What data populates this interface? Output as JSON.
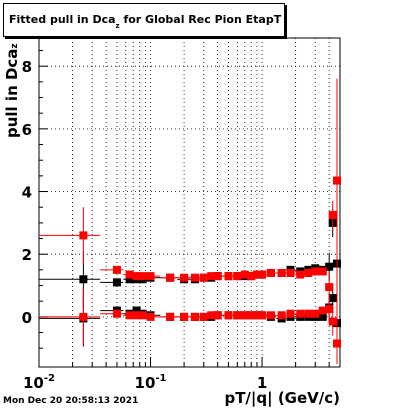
{
  "title": {
    "main": "Fitted pull in Dca",
    "sub": "z",
    "rest": " for Global Rec Pion EtapT"
  },
  "timestamp": "Mon Dec 20 20:58:13 2021",
  "chart_data": {
    "type": "scatter",
    "title": "Fitted pull in Dca_z for Global Rec Pion EtapT",
    "xlabel": "pT/|q| (GeV/c)",
    "ylabel_main": "pull in Dca",
    "ylabel_sub": "z",
    "xscale": "log",
    "xlim": [
      0.01,
      5.0
    ],
    "ylim": [
      -1.6,
      8.9
    ],
    "grid": true,
    "xticks": [
      {
        "value": 0.01,
        "label": "10",
        "exp": "-2"
      },
      {
        "value": 0.1,
        "label": "10",
        "exp": "-1"
      },
      {
        "value": 1,
        "label": "1",
        "exp": ""
      }
    ],
    "yticks": [
      0,
      2,
      4,
      6,
      8
    ],
    "series": [
      {
        "color": "#000000",
        "marker": "square",
        "sigma_x": [
          0.025,
          0.05,
          0.065,
          0.075,
          0.085,
          0.1,
          0.15,
          0.2,
          0.25,
          0.3,
          0.35,
          0.4,
          0.5,
          0.6,
          0.7,
          0.8,
          0.9,
          1.0,
          1.2,
          1.5,
          1.8,
          2.2,
          2.6,
          3.0,
          3.5,
          4.0,
          4.3,
          4.7
        ],
        "sigma_y": [
          1.2,
          1.1,
          1.2,
          1.2,
          1.2,
          1.25,
          1.25,
          1.2,
          1.2,
          1.25,
          1.25,
          1.3,
          1.3,
          1.3,
          1.3,
          1.3,
          1.35,
          1.35,
          1.4,
          1.4,
          1.5,
          1.45,
          1.5,
          1.55,
          1.5,
          1.6,
          3.0,
          1.7
        ],
        "mean_x": [
          0.025,
          0.05,
          0.065,
          0.075,
          0.085,
          0.1,
          0.15,
          0.2,
          0.25,
          0.3,
          0.35,
          0.4,
          0.5,
          0.6,
          0.7,
          0.8,
          0.9,
          1.0,
          1.2,
          1.5,
          1.8,
          2.2,
          2.6,
          3.0,
          3.5,
          4.0,
          4.3,
          4.7
        ],
        "mean_y": [
          -0.05,
          0.2,
          0.1,
          0.2,
          0.1,
          0.05,
          0.0,
          0.0,
          0.0,
          0.0,
          0.0,
          0.05,
          0.05,
          0.05,
          0.05,
          0.05,
          0.05,
          0.05,
          0.0,
          -0.05,
          0.0,
          0.0,
          0.0,
          0.0,
          0.0,
          0.3,
          0.6,
          -0.2
        ]
      },
      {
        "color": "#ff0000",
        "marker": "square",
        "sigma_x": [
          0.025,
          0.05,
          0.065,
          0.075,
          0.085,
          0.1,
          0.15,
          0.2,
          0.25,
          0.3,
          0.35,
          0.4,
          0.5,
          0.6,
          0.7,
          0.8,
          0.9,
          1.0,
          1.2,
          1.5,
          1.8,
          2.2,
          2.6,
          3.0,
          3.5,
          4.0,
          4.3,
          4.7
        ],
        "sigma_y": [
          2.6,
          1.5,
          1.35,
          1.3,
          1.3,
          1.3,
          1.25,
          1.25,
          1.25,
          1.25,
          1.3,
          1.3,
          1.3,
          1.3,
          1.35,
          1.3,
          1.35,
          1.35,
          1.4,
          1.4,
          1.4,
          1.35,
          1.4,
          1.45,
          1.45,
          0.95,
          3.25,
          4.35
        ],
        "mean_x": [
          0.025,
          0.05,
          0.065,
          0.075,
          0.085,
          0.1,
          0.15,
          0.2,
          0.25,
          0.3,
          0.35,
          0.4,
          0.5,
          0.6,
          0.7,
          0.8,
          0.9,
          1.0,
          1.2,
          1.5,
          1.8,
          2.2,
          2.6,
          3.0,
          3.5,
          4.0,
          4.3,
          4.7
        ],
        "mean_y": [
          0.0,
          0.1,
          0.05,
          0.05,
          0.05,
          0.0,
          0.0,
          0.0,
          0.0,
          0.0,
          0.05,
          0.05,
          0.05,
          0.05,
          0.05,
          0.05,
          0.05,
          0.05,
          0.05,
          0.05,
          0.1,
          0.1,
          0.1,
          0.1,
          0.2,
          0.25,
          -0.15,
          -0.85
        ]
      }
    ]
  }
}
